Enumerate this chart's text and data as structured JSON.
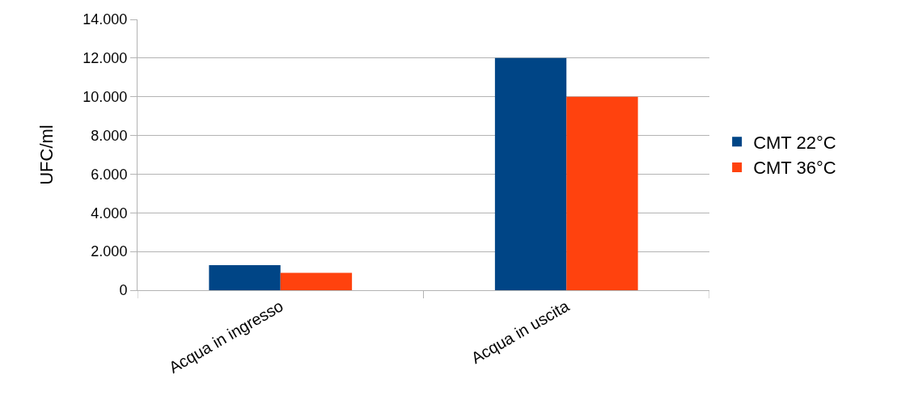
{
  "chart_data": {
    "type": "bar",
    "ylabel": "UFC/ml",
    "categories": [
      "Acqua in ingresso",
      "Acqua in uscita"
    ],
    "series": [
      {
        "name": "CMT 22°C",
        "color": "#004586",
        "values": [
          1300,
          12000
        ]
      },
      {
        "name": "CMT 36°C",
        "color": "#ff420e",
        "values": [
          900,
          10000
        ]
      }
    ],
    "ylim": [
      0,
      14000
    ],
    "yticks": [
      {
        "value": 0,
        "label": "0"
      },
      {
        "value": 2000,
        "label": "2.000"
      },
      {
        "value": 4000,
        "label": "4.000"
      },
      {
        "value": 6000,
        "label": "6.000"
      },
      {
        "value": 8000,
        "label": "8.000"
      },
      {
        "value": 10000,
        "label": "10.000"
      },
      {
        "value": 12000,
        "label": "12.000"
      },
      {
        "value": 14000,
        "label": "14.000"
      }
    ],
    "grid": "y",
    "legend": "right"
  }
}
